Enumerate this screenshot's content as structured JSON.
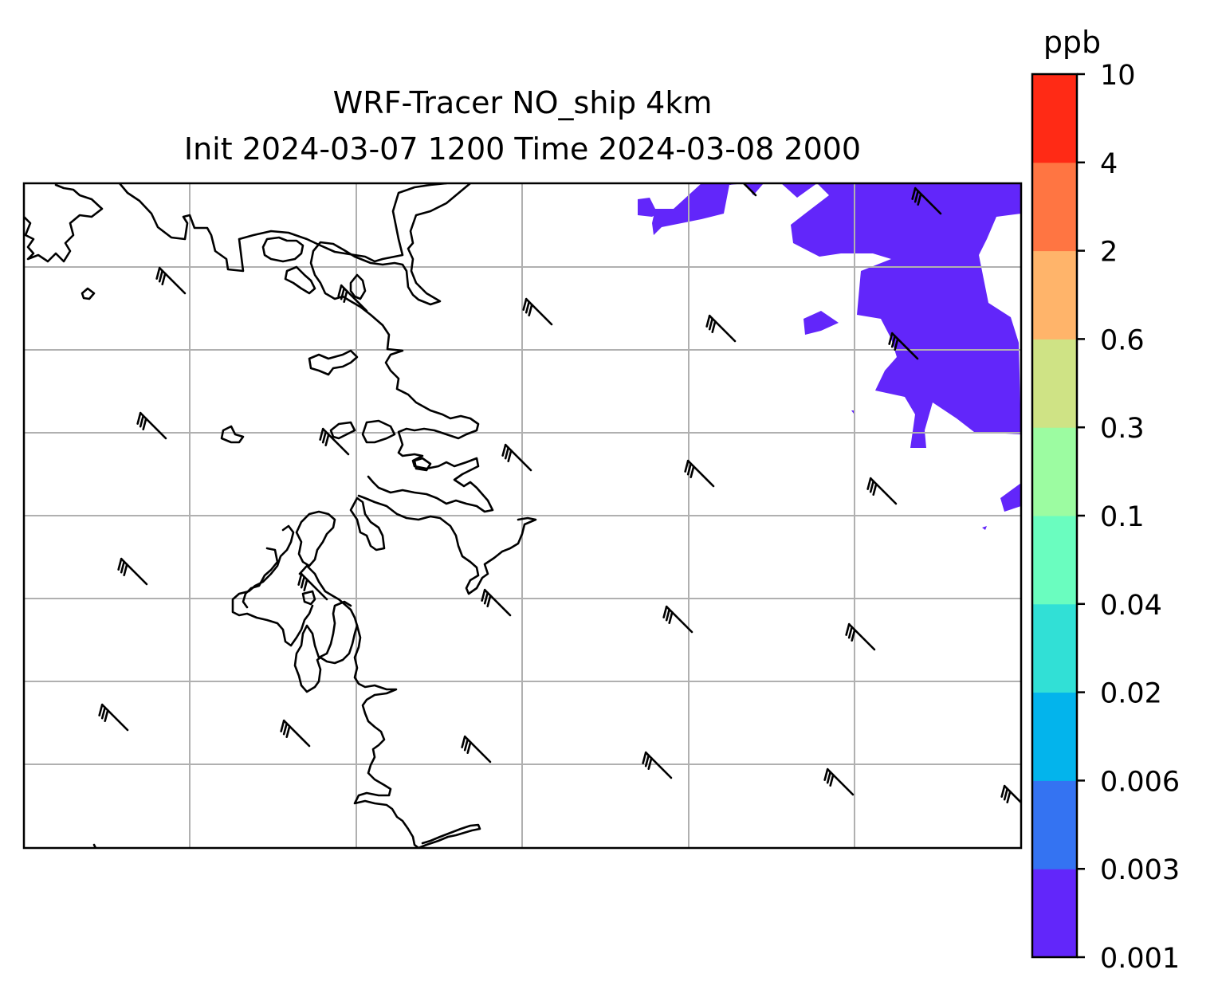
{
  "title": {
    "line1": "WRF-Tracer NO_ship 4km",
    "line2": "Init 2024-03-07 1200 Time 2024-03-08 2000"
  },
  "colorbar": {
    "unit": "ppb",
    "levels": [
      "0.001",
      "0.003",
      "0.006",
      "0.02",
      "0.04",
      "0.1",
      "0.3",
      "0.6",
      "2",
      "4",
      "10"
    ],
    "colors": [
      "#6226fa",
      "#3473f2",
      "#03b4ec",
      "#31e0d6",
      "#6afdbf",
      "#9cfca1",
      "#cfe385",
      "#ffb46a",
      "#ff7542",
      "#ff2a15"
    ]
  },
  "map": {
    "tracer_fill_color": "#6226fa",
    "coastline_color": "#000000",
    "gridline_color": "#b0b0b0",
    "wind_barb_color": "#000000",
    "gridlines": true
  }
}
